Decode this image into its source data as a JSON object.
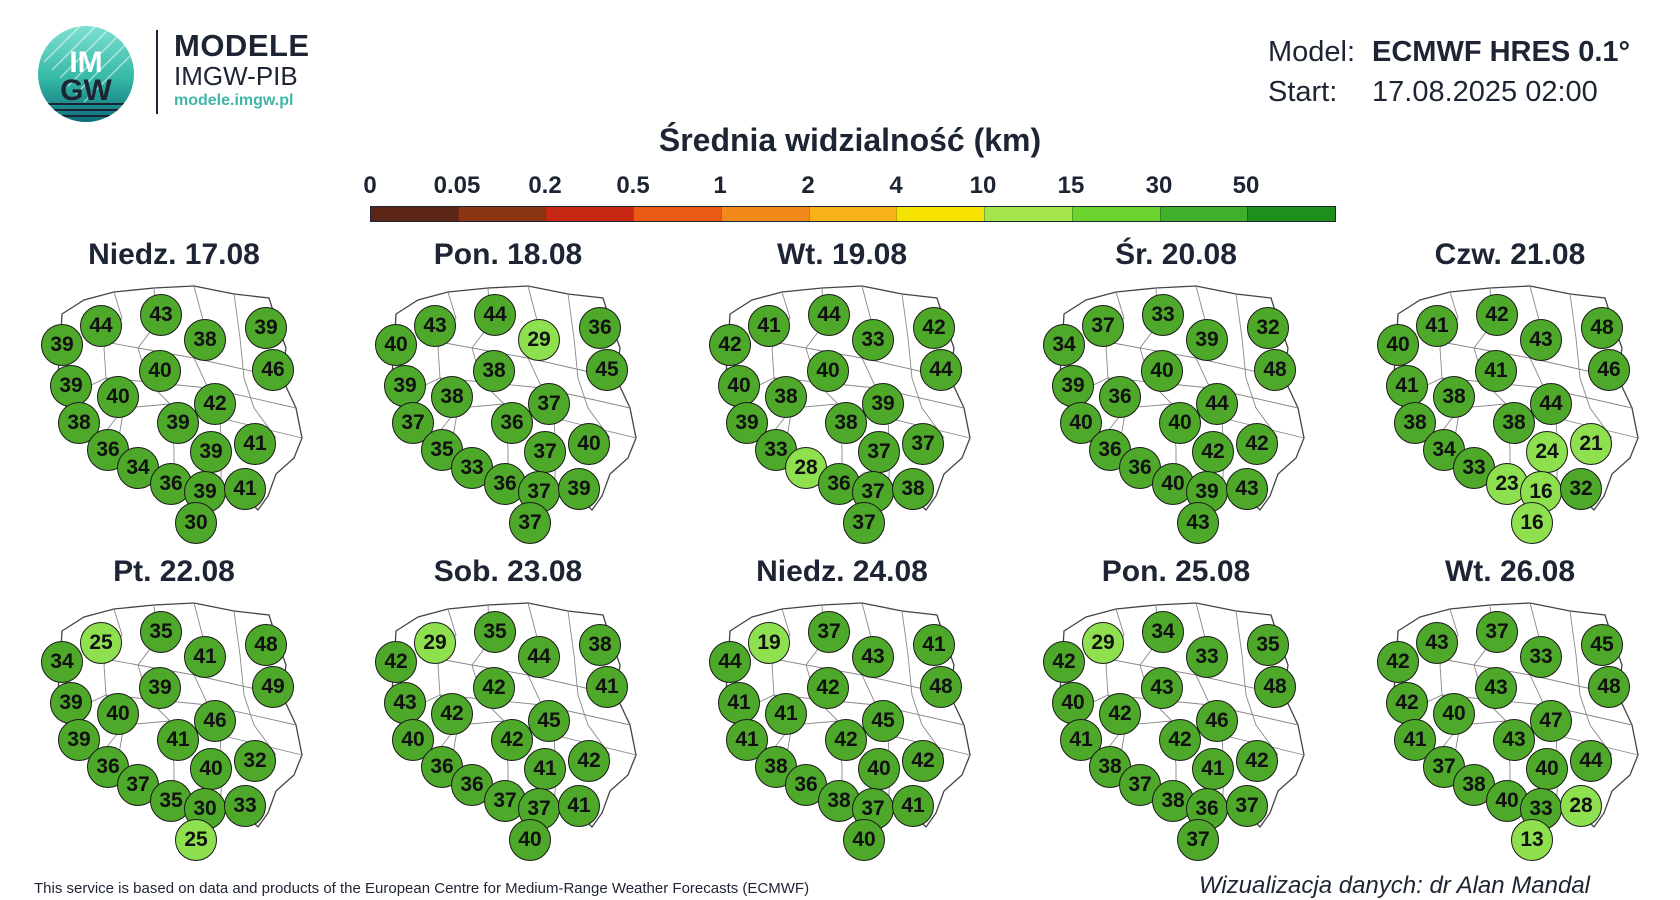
{
  "header": {
    "logo_text_top": "IM",
    "logo_text_bottom": "GW",
    "brand_title": "MODELE",
    "brand_sub": "IMGW-PIB",
    "brand_url": "modele.imgw.pl"
  },
  "meta": {
    "model_label": "Model:",
    "model_value": "ECMWF HRES 0.1°",
    "start_label": "Start:",
    "start_value": "17.08.2025 02:00"
  },
  "title": "Średnia widzialność (km)",
  "legend": {
    "ticks": [
      "0",
      "0.05",
      "0.2",
      "0.5",
      "1",
      "2",
      "4",
      "10",
      "15",
      "30",
      "50"
    ],
    "colors": [
      "#5a2417",
      "#8c3515",
      "#c62814",
      "#ea5a12",
      "#f28a1b",
      "#f7b21a",
      "#f6e200",
      "#a6e64d",
      "#6cd42f",
      "#3fb02a",
      "#1e8f1a"
    ]
  },
  "colors": {
    "dark_green": "#4ea82a",
    "light_green": "#8ee04f"
  },
  "panels": [
    {
      "day": "Niedz. 17.08",
      "values": [
        "39",
        "44",
        "43",
        "38",
        "39",
        "46",
        "39",
        "40",
        "40",
        "42",
        "38",
        "39",
        "36",
        "39",
        "41",
        "34",
        "36",
        "39",
        "41",
        "30"
      ]
    },
    {
      "day": "Pon. 18.08",
      "values": [
        "40",
        "43",
        "44",
        "29",
        "36",
        "45",
        "39",
        "38",
        "38",
        "37",
        "37",
        "36",
        "35",
        "37",
        "40",
        "33",
        "36",
        "37",
        "39",
        "37"
      ]
    },
    {
      "day": "Wt. 19.08",
      "values": [
        "42",
        "41",
        "44",
        "33",
        "42",
        "44",
        "40",
        "38",
        "40",
        "39",
        "39",
        "38",
        "33",
        "37",
        "37",
        "28",
        "36",
        "37",
        "38",
        "37"
      ]
    },
    {
      "day": "Śr. 20.08",
      "values": [
        "34",
        "37",
        "33",
        "39",
        "32",
        "48",
        "39",
        "36",
        "40",
        "44",
        "40",
        "40",
        "36",
        "42",
        "42",
        "36",
        "40",
        "39",
        "43",
        "43"
      ]
    },
    {
      "day": "Czw. 21.08",
      "values": [
        "40",
        "41",
        "42",
        "43",
        "48",
        "46",
        "41",
        "38",
        "41",
        "44",
        "38",
        "38",
        "34",
        "24",
        "21",
        "33",
        "23",
        "16",
        "32",
        "16"
      ]
    },
    {
      "day": "Pt. 22.08",
      "values": [
        "34",
        "25",
        "35",
        "41",
        "48",
        "49",
        "39",
        "40",
        "39",
        "46",
        "39",
        "41",
        "36",
        "40",
        "32",
        "37",
        "35",
        "30",
        "33",
        "25"
      ]
    },
    {
      "day": "Sob. 23.08",
      "values": [
        "42",
        "29",
        "35",
        "44",
        "38",
        "41",
        "43",
        "42",
        "42",
        "45",
        "40",
        "42",
        "36",
        "41",
        "42",
        "36",
        "37",
        "37",
        "41",
        "40"
      ]
    },
    {
      "day": "Niedz. 24.08",
      "values": [
        "44",
        "19",
        "37",
        "43",
        "41",
        "48",
        "41",
        "41",
        "42",
        "45",
        "41",
        "42",
        "38",
        "40",
        "42",
        "36",
        "38",
        "37",
        "41",
        "40"
      ]
    },
    {
      "day": "Pon. 25.08",
      "values": [
        "42",
        "29",
        "34",
        "33",
        "35",
        "48",
        "40",
        "42",
        "43",
        "46",
        "41",
        "42",
        "38",
        "41",
        "42",
        "37",
        "38",
        "36",
        "37",
        "37"
      ]
    },
    {
      "day": "Wt. 26.08",
      "values": [
        "42",
        "43",
        "37",
        "33",
        "45",
        "48",
        "42",
        "40",
        "43",
        "47",
        "41",
        "43",
        "37",
        "40",
        "44",
        "38",
        "40",
        "33",
        "28",
        "13"
      ]
    }
  ],
  "footer": {
    "left": "This service is based on data and products of the European Centre for Medium-Range Weather Forecasts (ECMWF)",
    "right": "Wizualizacja danych: dr Alan Mandal"
  }
}
